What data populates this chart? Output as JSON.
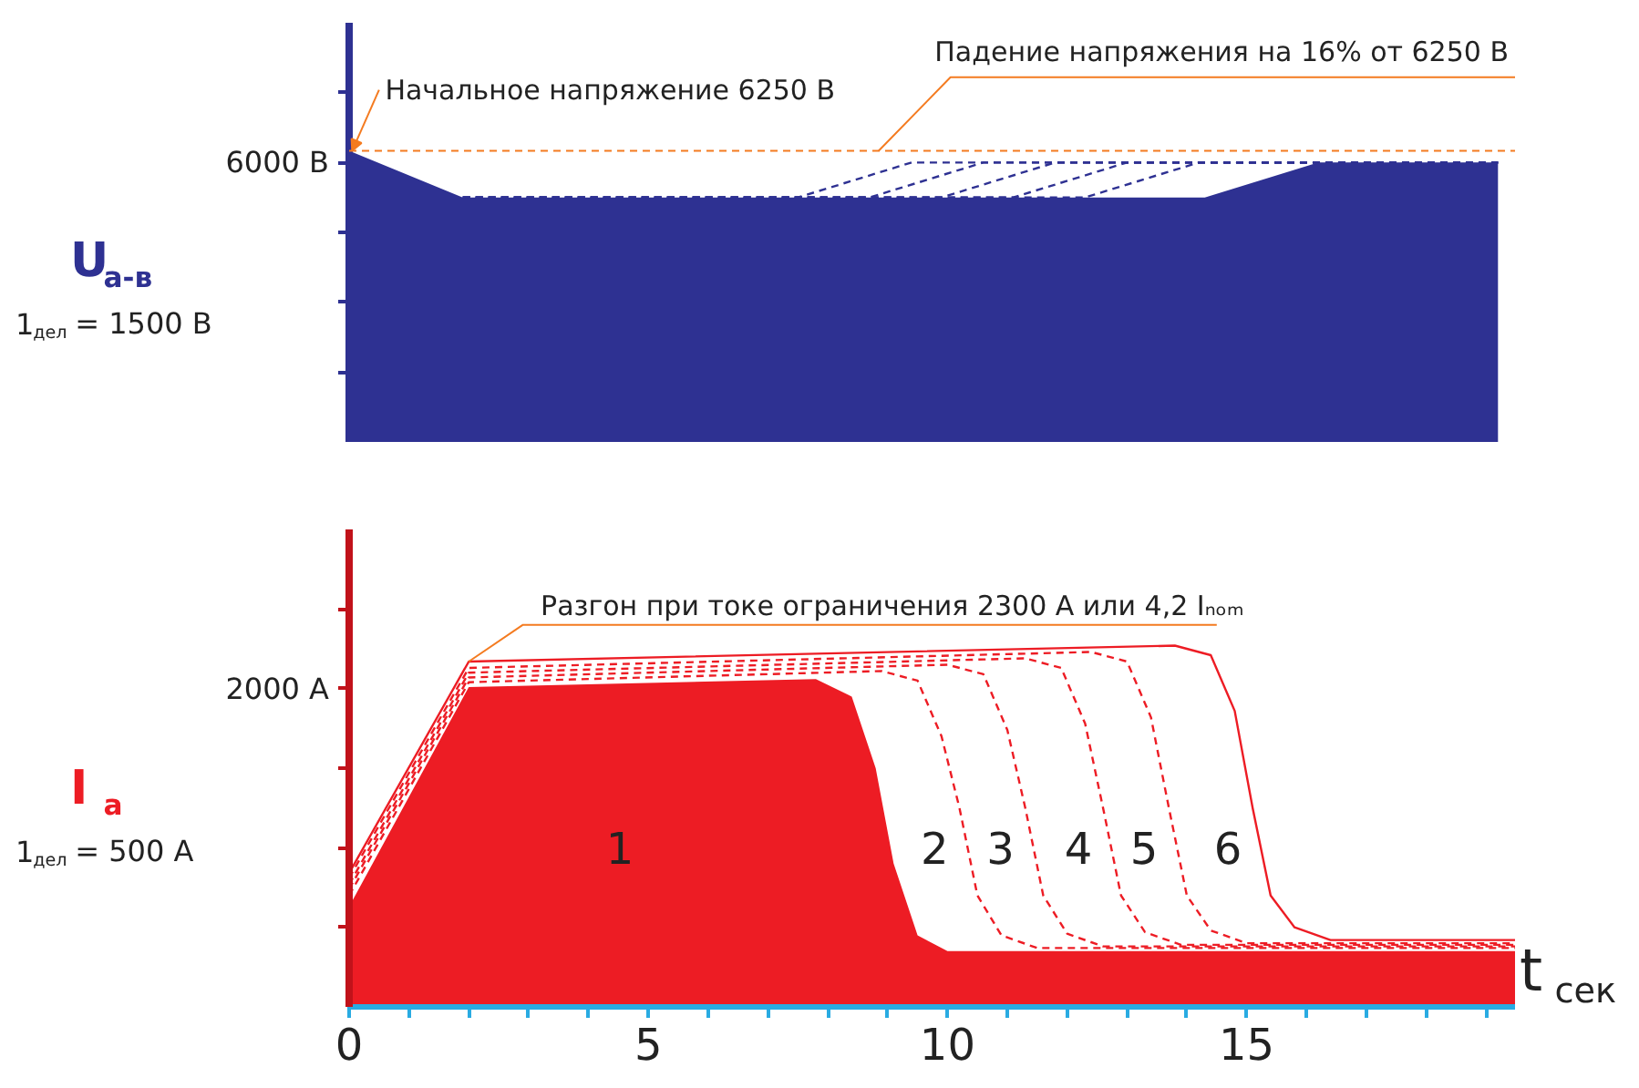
{
  "chart_data": [
    {
      "type": "area",
      "ylabel": "U$_{а-в}$",
      "xlim": [
        0,
        19.5
      ],
      "ylim": [
        0,
        9000
      ],
      "yticks": [
        {
          "value": 1500,
          "label": null
        },
        {
          "value": 3000,
          "label": null
        },
        {
          "value": 4500,
          "label": null
        },
        {
          "value": 6000,
          "label": "6000 В"
        },
        {
          "value": 7500,
          "label": null
        }
      ],
      "tick_labels": "y",
      "grid": false,
      "legend": false,
      "series": [
        {
          "color": "#2e3192",
          "x": [
            0,
            1.9,
            14.3,
            16.2,
            19.2
          ],
          "values": [
            6250,
            5250,
            5250,
            6000,
            6000
          ]
        },
        {
          "type": "line",
          "line_style": "dashed",
          "color": "#2e3192",
          "x": [
            1.9,
            7.5,
            9.4,
            19.2
          ],
          "values": [
            5250,
            5250,
            6000,
            6000
          ]
        },
        {
          "type": "line",
          "line_style": "dashed",
          "color": "#2e3192",
          "x": [
            1.9,
            8.7,
            10.6,
            19.2
          ],
          "values": [
            5250,
            5250,
            6000,
            6000
          ]
        },
        {
          "type": "line",
          "line_style": "dashed",
          "color": "#2e3192",
          "x": [
            1.9,
            9.9,
            11.8,
            19.2
          ],
          "values": [
            5250,
            5250,
            6000,
            6000
          ]
        },
        {
          "type": "line",
          "line_style": "dashed",
          "color": "#2e3192",
          "x": [
            1.9,
            11.1,
            13.0,
            19.2
          ],
          "values": [
            5250,
            5250,
            6000,
            6000
          ]
        },
        {
          "type": "line",
          "line_style": "dashed",
          "color": "#2e3192",
          "x": [
            1.9,
            12.3,
            14.2,
            19.2
          ],
          "values": [
            5250,
            5250,
            6000,
            6000
          ]
        }
      ],
      "ref_lines": [
        {
          "axis": "y",
          "value": 6250,
          "color": "#f47b20",
          "line_style": "dashed"
        }
      ],
      "annotations": [
        {
          "text": "Начальное напряжение 6250 В",
          "x": 0,
          "y": 6250
        },
        {
          "text": "Падение напряжения на 16% от 6250 В",
          "x": 8.85,
          "y": 6250
        },
        "1$_{дел}$ = 1500 В"
      ]
    },
    {
      "type": "area",
      "ylabel": "I$_{а}$",
      "xlabel": "t$_{сек}$",
      "xlim": [
        0,
        19.5
      ],
      "ylim": [
        0,
        3000
      ],
      "xticks": [
        {
          "value": 0,
          "label": "0"
        },
        {
          "value": 1,
          "label": null
        },
        {
          "value": 2,
          "label": null
        },
        {
          "value": 3,
          "label": null
        },
        {
          "value": 4,
          "label": null
        },
        5,
        {
          "value": 6,
          "label": null
        },
        {
          "value": 7,
          "label": null
        },
        {
          "value": 8,
          "label": null
        },
        {
          "value": 9,
          "label": null
        },
        10,
        {
          "value": 11,
          "label": null
        },
        {
          "value": 12,
          "label": null
        },
        {
          "value": 13,
          "label": null
        },
        {
          "value": 14,
          "label": null
        },
        15,
        {
          "value": 16,
          "label": null
        },
        {
          "value": 17,
          "label": null
        },
        {
          "value": 18,
          "label": null
        },
        {
          "value": 19,
          "label": null
        }
      ],
      "yticks": [
        {
          "value": 500,
          "label": null
        },
        {
          "value": 1000,
          "label": null
        },
        {
          "value": 1500,
          "label": null
        },
        {
          "value": 2000,
          "label": "2000 А"
        },
        {
          "value": 2500,
          "label": null
        }
      ],
      "grid": false,
      "legend": false,
      "series": [
        {
          "name": "1",
          "color": "#ed1c24",
          "x": [
            0,
            2,
            7.8,
            8.4,
            8.8,
            9.1,
            9.5,
            10.0,
            19.5
          ],
          "values": [
            630,
            2010,
            2060,
            1950,
            1500,
            900,
            450,
            350,
            350
          ]
        },
        {
          "name": "2",
          "type": "line",
          "line_style": "dashed",
          "color": "#ed1c24",
          "x": [
            0,
            2,
            8.9,
            9.5,
            9.9,
            10.2,
            10.5,
            10.9,
            11.5,
            19.5
          ],
          "values": [
            700,
            2040,
            2110,
            2050,
            1700,
            1250,
            700,
            450,
            370,
            370
          ]
        },
        {
          "name": "3",
          "type": "line",
          "line_style": "dashed",
          "color": "#ed1c24",
          "x": [
            0,
            2,
            10.0,
            10.6,
            11.0,
            11.3,
            11.6,
            12.0,
            12.6,
            19.5
          ],
          "values": [
            740,
            2070,
            2150,
            2090,
            1740,
            1250,
            700,
            460,
            380,
            380
          ]
        },
        {
          "name": "4",
          "type": "line",
          "line_style": "dashed",
          "color": "#ed1c24",
          "x": [
            0,
            2,
            11.3,
            11.9,
            12.3,
            12.6,
            12.9,
            13.3,
            13.9,
            19.5
          ],
          "values": [
            770,
            2100,
            2190,
            2130,
            1780,
            1250,
            700,
            470,
            390,
            390
          ]
        },
        {
          "name": "5",
          "type": "line",
          "line_style": "dashed",
          "color": "#ed1c24",
          "x": [
            0,
            2,
            12.4,
            13.0,
            13.4,
            13.7,
            14.0,
            14.4,
            15.0,
            19.5
          ],
          "values": [
            810,
            2130,
            2230,
            2170,
            1820,
            1250,
            700,
            480,
            400,
            400
          ]
        },
        {
          "name": "6",
          "type": "line",
          "line_style": "solid",
          "color": "#ed1c24",
          "x": [
            0,
            2,
            13.8,
            14.4,
            14.8,
            15.1,
            15.4,
            15.8,
            16.4,
            19.5
          ],
          "values": [
            840,
            2170,
            2270,
            2210,
            1860,
            1250,
            700,
            500,
            420,
            420
          ]
        }
      ],
      "annotations": [
        {
          "text": "Разгон при токе ограничения 2300 А или 4,2 Iₙₒₘ",
          "x": 2,
          "y": 2170
        },
        "1$_{дел}$ = 500 А"
      ]
    }
  ]
}
